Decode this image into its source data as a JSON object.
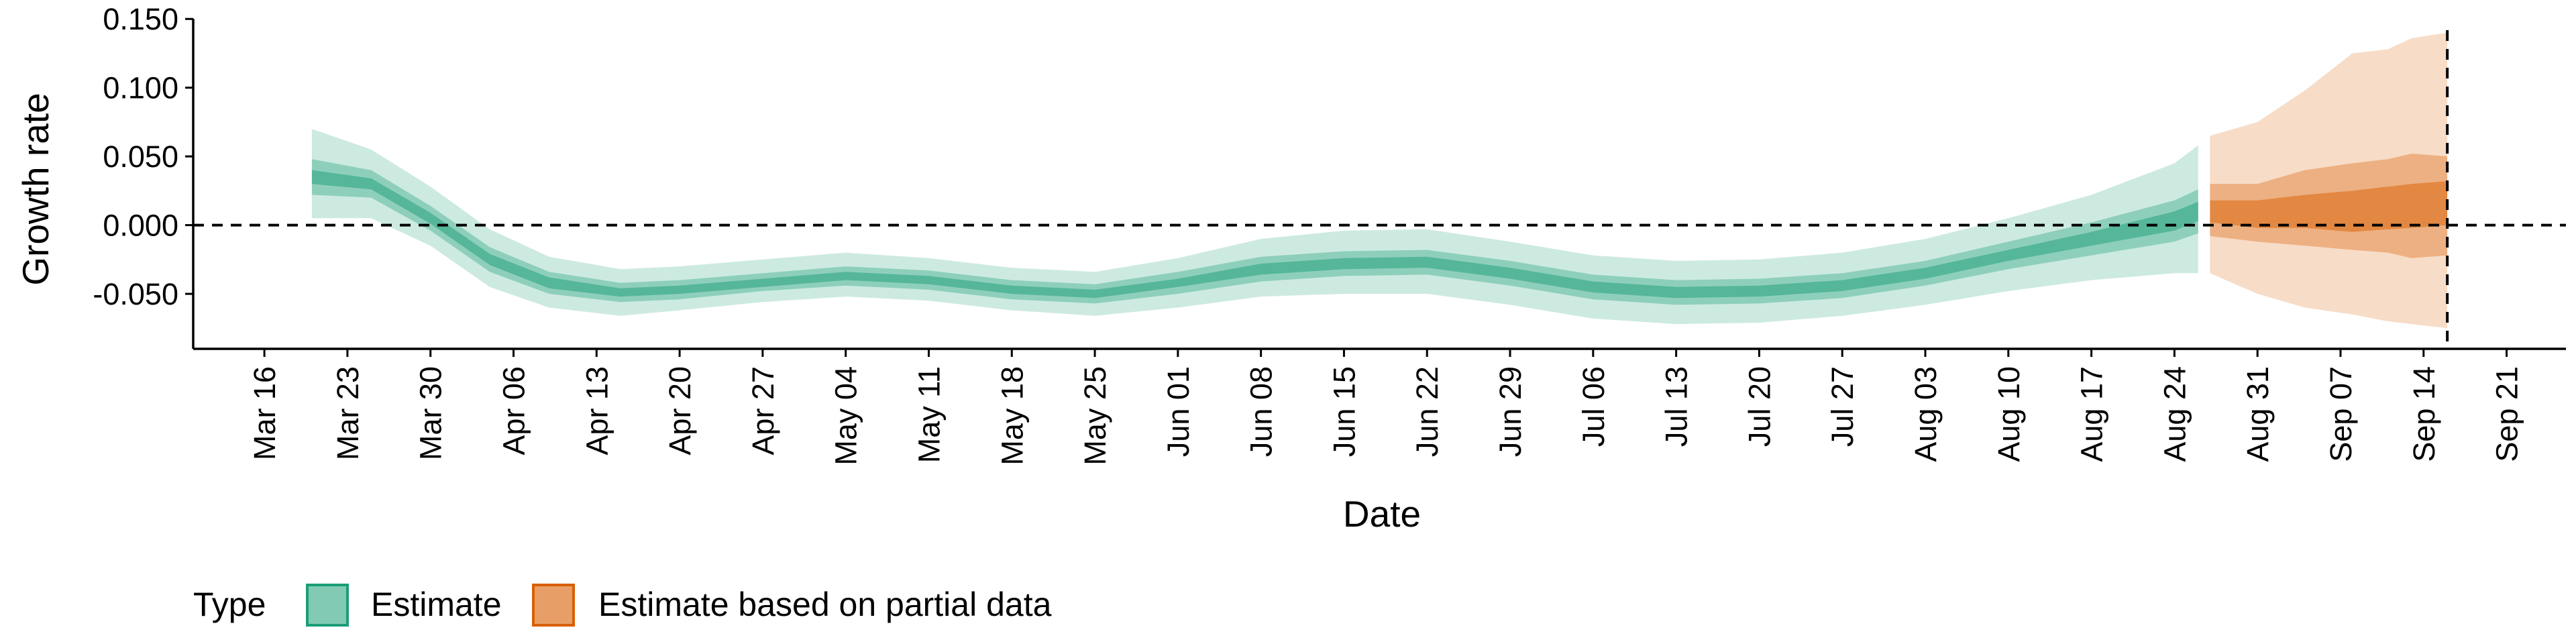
{
  "chart_data": {
    "type": "area",
    "xlabel": "Date",
    "ylabel": "Growth rate",
    "ylim": [
      -0.09,
      0.155
    ],
    "y_ticks": [
      0.15,
      0.1,
      0.05,
      0.0,
      -0.05
    ],
    "y_tick_labels": [
      "0.150",
      "0.100",
      "0.050",
      "0.000",
      "-0.050"
    ],
    "x_range": [
      "2020-03-10",
      "2020-09-26"
    ],
    "x_ticks": [
      "2020-03-16",
      "2020-03-23",
      "2020-03-30",
      "2020-04-06",
      "2020-04-13",
      "2020-04-20",
      "2020-04-27",
      "2020-05-04",
      "2020-05-11",
      "2020-05-18",
      "2020-05-25",
      "2020-06-01",
      "2020-06-08",
      "2020-06-15",
      "2020-06-22",
      "2020-06-29",
      "2020-07-06",
      "2020-07-13",
      "2020-07-20",
      "2020-07-27",
      "2020-08-03",
      "2020-08-10",
      "2020-08-17",
      "2020-08-24",
      "2020-08-31",
      "2020-09-07",
      "2020-09-14",
      "2020-09-21"
    ],
    "x_tick_labels": [
      "Mar 16",
      "Mar 23",
      "Mar 30",
      "Apr 06",
      "Apr 13",
      "Apr 20",
      "Apr 27",
      "May 04",
      "May 11",
      "May 18",
      "May 25",
      "Jun 01",
      "Jun 08",
      "Jun 15",
      "Jun 22",
      "Jun 29",
      "Jul 06",
      "Jul 13",
      "Jul 20",
      "Jul 27",
      "Aug 03",
      "Aug 10",
      "Aug 17",
      "Aug 24",
      "Aug 31",
      "Sep 07",
      "Sep 14",
      "Sep 21"
    ],
    "reference_lines": {
      "horizontal_y": 0.0,
      "vertical_date": "2020-09-16"
    },
    "legend": {
      "title": "Type",
      "position": "bottom-left",
      "entries": [
        "Estimate",
        "Estimate based on partial data"
      ]
    },
    "colors": {
      "estimate": "#1b9e77",
      "partial": "#d95f02"
    },
    "series": [
      {
        "name": "Estimate",
        "band_opacities": [
          0.22,
          0.35,
          0.5
        ],
        "points": [
          {
            "date": "2020-03-20",
            "median": 0.035,
            "lo90": 0.005,
            "hi90": 0.07,
            "lo50": 0.022,
            "hi50": 0.048,
            "lo20": 0.03,
            "hi20": 0.04
          },
          {
            "date": "2020-03-25",
            "median": 0.03,
            "lo90": 0.005,
            "hi90": 0.055,
            "lo50": 0.02,
            "hi50": 0.04,
            "lo20": 0.026,
            "hi20": 0.034
          },
          {
            "date": "2020-03-30",
            "median": 0.005,
            "lo90": -0.015,
            "hi90": 0.028,
            "lo50": -0.004,
            "hi50": 0.014,
            "lo20": 0.001,
            "hi20": 0.009
          },
          {
            "date": "2020-04-04",
            "median": -0.025,
            "lo90": -0.045,
            "hi90": -0.003,
            "lo50": -0.034,
            "hi50": -0.016,
            "lo20": -0.029,
            "hi20": -0.021
          },
          {
            "date": "2020-04-09",
            "median": -0.042,
            "lo90": -0.06,
            "hi90": -0.023,
            "lo50": -0.05,
            "hi50": -0.034,
            "lo20": -0.046,
            "hi20": -0.038
          },
          {
            "date": "2020-04-15",
            "median": -0.049,
            "lo90": -0.066,
            "hi90": -0.032,
            "lo50": -0.056,
            "hi50": -0.042,
            "lo20": -0.052,
            "hi20": -0.046
          },
          {
            "date": "2020-04-20",
            "median": -0.047,
            "lo90": -0.062,
            "hi90": -0.03,
            "lo50": -0.054,
            "hi50": -0.04,
            "lo20": -0.05,
            "hi20": -0.044
          },
          {
            "date": "2020-04-27",
            "median": -0.042,
            "lo90": -0.056,
            "hi90": -0.025,
            "lo50": -0.048,
            "hi50": -0.035,
            "lo20": -0.045,
            "hi20": -0.039
          },
          {
            "date": "2020-05-04",
            "median": -0.037,
            "lo90": -0.052,
            "hi90": -0.02,
            "lo50": -0.044,
            "hi50": -0.03,
            "lo20": -0.04,
            "hi20": -0.034
          },
          {
            "date": "2020-05-11",
            "median": -0.04,
            "lo90": -0.055,
            "hi90": -0.024,
            "lo50": -0.047,
            "hi50": -0.033,
            "lo20": -0.043,
            "hi20": -0.037
          },
          {
            "date": "2020-05-18",
            "median": -0.047,
            "lo90": -0.062,
            "hi90": -0.031,
            "lo50": -0.054,
            "hi50": -0.04,
            "lo20": -0.05,
            "hi20": -0.044
          },
          {
            "date": "2020-05-25",
            "median": -0.05,
            "lo90": -0.066,
            "hi90": -0.034,
            "lo50": -0.057,
            "hi50": -0.043,
            "lo20": -0.053,
            "hi20": -0.047
          },
          {
            "date": "2020-06-01",
            "median": -0.042,
            "lo90": -0.06,
            "hi90": -0.024,
            "lo50": -0.05,
            "hi50": -0.034,
            "lo20": -0.045,
            "hi20": -0.039
          },
          {
            "date": "2020-06-08",
            "median": -0.032,
            "lo90": -0.052,
            "hi90": -0.01,
            "lo50": -0.041,
            "hi50": -0.023,
            "lo20": -0.036,
            "hi20": -0.028
          },
          {
            "date": "2020-06-15",
            "median": -0.028,
            "lo90": -0.05,
            "hi90": -0.004,
            "lo50": -0.037,
            "hi50": -0.019,
            "lo20": -0.032,
            "hi20": -0.024
          },
          {
            "date": "2020-06-22",
            "median": -0.027,
            "lo90": -0.05,
            "hi90": -0.003,
            "lo50": -0.036,
            "hi50": -0.018,
            "lo20": -0.031,
            "hi20": -0.023
          },
          {
            "date": "2020-06-29",
            "median": -0.035,
            "lo90": -0.058,
            "hi90": -0.012,
            "lo50": -0.044,
            "hi50": -0.026,
            "lo20": -0.039,
            "hi20": -0.031
          },
          {
            "date": "2020-07-06",
            "median": -0.045,
            "lo90": -0.068,
            "hi90": -0.022,
            "lo50": -0.054,
            "hi50": -0.036,
            "lo20": -0.049,
            "hi20": -0.041
          },
          {
            "date": "2020-07-13",
            "median": -0.049,
            "lo90": -0.072,
            "hi90": -0.026,
            "lo50": -0.058,
            "hi50": -0.04,
            "lo20": -0.053,
            "hi20": -0.045
          },
          {
            "date": "2020-07-20",
            "median": -0.048,
            "lo90": -0.071,
            "hi90": -0.025,
            "lo50": -0.057,
            "hi50": -0.039,
            "lo20": -0.052,
            "hi20": -0.044
          },
          {
            "date": "2020-07-27",
            "median": -0.044,
            "lo90": -0.066,
            "hi90": -0.02,
            "lo50": -0.053,
            "hi50": -0.035,
            "lo20": -0.048,
            "hi20": -0.04
          },
          {
            "date": "2020-08-03",
            "median": -0.035,
            "lo90": -0.058,
            "hi90": -0.01,
            "lo50": -0.044,
            "hi50": -0.026,
            "lo20": -0.039,
            "hi20": -0.031
          },
          {
            "date": "2020-08-10",
            "median": -0.022,
            "lo90": -0.048,
            "hi90": 0.005,
            "lo50": -0.032,
            "hi50": -0.012,
            "lo20": -0.026,
            "hi20": -0.018
          },
          {
            "date": "2020-08-17",
            "median": -0.01,
            "lo90": -0.04,
            "hi90": 0.022,
            "lo50": -0.022,
            "hi50": 0.002,
            "lo20": -0.015,
            "hi20": -0.005
          },
          {
            "date": "2020-08-24",
            "median": 0.003,
            "lo90": -0.035,
            "hi90": 0.045,
            "lo50": -0.012,
            "hi50": 0.018,
            "lo20": -0.004,
            "hi20": 0.01
          },
          {
            "date": "2020-08-26",
            "median": 0.01,
            "lo90": -0.035,
            "hi90": 0.058,
            "lo50": -0.006,
            "hi50": 0.026,
            "lo20": 0.003,
            "hi20": 0.017
          }
        ]
      },
      {
        "name": "Estimate based on partial data",
        "band_opacities": [
          0.22,
          0.35,
          0.5
        ],
        "points": [
          {
            "date": "2020-08-27",
            "median": 0.01,
            "lo90": -0.035,
            "hi90": 0.065,
            "lo50": -0.008,
            "hi50": 0.03,
            "lo20": 0.002,
            "hi20": 0.018
          },
          {
            "date": "2020-08-31",
            "median": 0.008,
            "lo90": -0.05,
            "hi90": 0.075,
            "lo50": -0.012,
            "hi50": 0.03,
            "lo20": -0.002,
            "hi20": 0.018
          },
          {
            "date": "2020-09-04",
            "median": 0.01,
            "lo90": -0.06,
            "hi90": 0.098,
            "lo50": -0.015,
            "hi50": 0.04,
            "lo20": -0.002,
            "hi20": 0.022
          },
          {
            "date": "2020-09-08",
            "median": 0.01,
            "lo90": -0.065,
            "hi90": 0.125,
            "lo50": -0.018,
            "hi50": 0.045,
            "lo20": -0.005,
            "hi20": 0.025
          },
          {
            "date": "2020-09-11",
            "median": 0.012,
            "lo90": -0.07,
            "hi90": 0.128,
            "lo50": -0.02,
            "hi50": 0.048,
            "lo20": -0.003,
            "hi20": 0.028
          },
          {
            "date": "2020-09-13",
            "median": 0.015,
            "lo90": -0.072,
            "hi90": 0.136,
            "lo50": -0.024,
            "hi50": 0.052,
            "lo20": -0.002,
            "hi20": 0.03
          },
          {
            "date": "2020-09-16",
            "median": 0.018,
            "lo90": -0.075,
            "hi90": 0.14,
            "lo50": -0.022,
            "hi50": 0.05,
            "lo20": 0.0,
            "hi20": 0.032
          }
        ]
      }
    ]
  }
}
